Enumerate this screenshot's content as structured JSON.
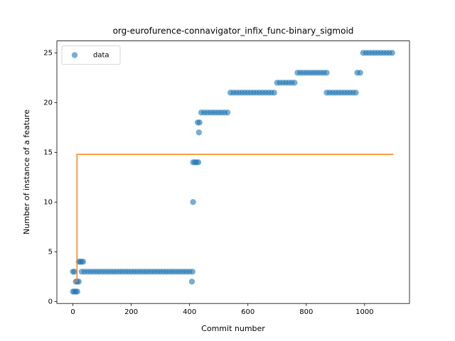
{
  "chart_data": {
    "type": "scatter",
    "title": "org-eurofurence-connavigator_infix_func-binary_sigmoid",
    "xlabel": "Commit number",
    "ylabel": "Number of instance of a feature",
    "xlim": [
      -55,
      1154
    ],
    "ylim": [
      -0.2,
      26.2
    ],
    "xticks": [
      0,
      200,
      400,
      600,
      800,
      1000
    ],
    "yticks": [
      0,
      5,
      10,
      15,
      20,
      25
    ],
    "legend": "upper left",
    "series": [
      {
        "type": "scatter",
        "name": "data",
        "color": "#1f77b4",
        "x": [
          0,
          5,
          10,
          15,
          0,
          5,
          10,
          15,
          20,
          20,
          25,
          30,
          35,
          30,
          40,
          50,
          60,
          70,
          80,
          90,
          100,
          110,
          120,
          130,
          140,
          150,
          160,
          170,
          180,
          190,
          200,
          210,
          220,
          230,
          240,
          250,
          260,
          270,
          280,
          290,
          300,
          310,
          320,
          330,
          340,
          350,
          360,
          370,
          380,
          390,
          400,
          410,
          408,
          412,
          412,
          418,
          424,
          430,
          432,
          428,
          434,
          440,
          450,
          460,
          470,
          480,
          490,
          500,
          510,
          520,
          530,
          540,
          550,
          560,
          570,
          580,
          590,
          600,
          610,
          620,
          630,
          640,
          650,
          660,
          670,
          680,
          690,
          700,
          710,
          720,
          730,
          740,
          750,
          760,
          770,
          780,
          790,
          800,
          810,
          820,
          830,
          840,
          850,
          860,
          870,
          870,
          880,
          890,
          900,
          910,
          920,
          930,
          940,
          950,
          960,
          970,
          975,
          985,
          995,
          1005,
          1015,
          1025,
          1035,
          1045,
          1055,
          1065,
          1075,
          1085,
          1095
        ],
        "values": [
          1,
          1,
          1,
          1,
          3,
          3,
          2,
          2,
          2,
          4,
          4,
          4,
          4,
          3,
          3,
          3,
          3,
          3,
          3,
          3,
          3,
          3,
          3,
          3,
          3,
          3,
          3,
          3,
          3,
          3,
          3,
          3,
          3,
          3,
          3,
          3,
          3,
          3,
          3,
          3,
          3,
          3,
          3,
          3,
          3,
          3,
          3,
          3,
          3,
          3,
          3,
          3,
          2,
          10,
          14,
          14,
          14,
          14,
          17,
          18,
          18,
          19,
          19,
          19,
          19,
          19,
          19,
          19,
          19,
          19,
          19,
          21,
          21,
          21,
          21,
          21,
          21,
          21,
          21,
          21,
          21,
          21,
          21,
          21,
          21,
          21,
          21,
          22,
          22,
          22,
          22,
          22,
          22,
          22,
          23,
          23,
          23,
          23,
          23,
          23,
          23,
          23,
          23,
          23,
          23,
          21,
          21,
          21,
          21,
          21,
          21,
          21,
          21,
          21,
          21,
          21,
          23,
          23,
          25,
          25,
          25,
          25,
          25,
          25,
          25,
          25,
          25,
          25,
          25
        ]
      },
      {
        "type": "line",
        "color": "#ff7f0e",
        "x": [
          0,
          14,
          14,
          1099
        ],
        "values": [
          2,
          2,
          14.8,
          14.8
        ]
      }
    ]
  }
}
